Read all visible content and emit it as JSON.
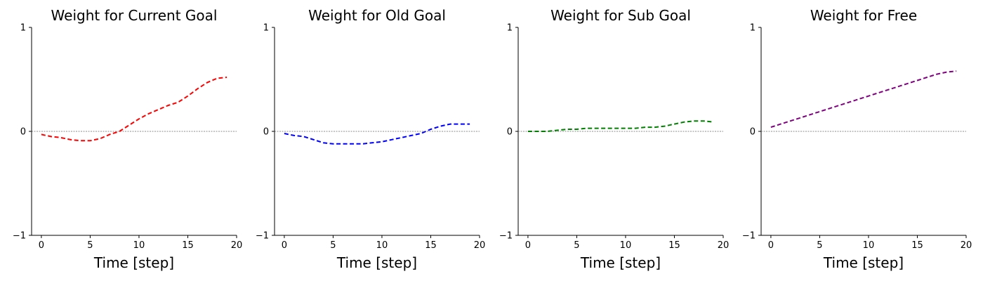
{
  "chart_data": [
    {
      "type": "line",
      "title": "Weight for Current Goal",
      "xlabel": "Time [step]",
      "ylabel": "",
      "xlim": [
        -1,
        20
      ],
      "ylim": [
        -1,
        1
      ],
      "xticks": [
        0,
        5,
        10,
        15,
        20
      ],
      "yticks": [
        -1,
        0,
        1
      ],
      "ytick_labels": [
        "−1",
        "0",
        "1"
      ],
      "grid": false,
      "zero_line": true,
      "color": "#ff0000",
      "series": [
        {
          "x": [
            0,
            1,
            2,
            3,
            4,
            5,
            6,
            7,
            8,
            9,
            10,
            11,
            12,
            13,
            14,
            15,
            16,
            17,
            18,
            19
          ],
          "values": [
            -0.03,
            -0.05,
            -0.06,
            -0.08,
            -0.09,
            -0.09,
            -0.07,
            -0.03,
            0.0,
            0.06,
            0.12,
            0.17,
            0.21,
            0.25,
            0.28,
            0.34,
            0.41,
            0.47,
            0.51,
            0.52
          ]
        }
      ]
    },
    {
      "type": "line",
      "title": "Weight for Old Goal",
      "xlabel": "Time [step]",
      "ylabel": "",
      "xlim": [
        -1,
        20
      ],
      "ylim": [
        -1,
        1
      ],
      "xticks": [
        0,
        5,
        10,
        15,
        20
      ],
      "yticks": [
        -1,
        0,
        1
      ],
      "ytick_labels": [
        "−1",
        "0",
        "1"
      ],
      "grid": false,
      "zero_line": true,
      "color": "#0000ff",
      "series": [
        {
          "x": [
            0,
            1,
            2,
            3,
            4,
            5,
            6,
            7,
            8,
            9,
            10,
            11,
            12,
            13,
            14,
            15,
            16,
            17,
            18,
            19
          ],
          "values": [
            -0.02,
            -0.04,
            -0.05,
            -0.08,
            -0.11,
            -0.12,
            -0.12,
            -0.12,
            -0.12,
            -0.11,
            -0.1,
            -0.08,
            -0.06,
            -0.04,
            -0.02,
            0.02,
            0.05,
            0.07,
            0.07,
            0.07
          ]
        }
      ]
    },
    {
      "type": "line",
      "title": "Weight for Sub Goal",
      "xlabel": "Time [step]",
      "ylabel": "",
      "xlim": [
        -1,
        20
      ],
      "ylim": [
        -1,
        1
      ],
      "xticks": [
        0,
        5,
        10,
        15,
        20
      ],
      "yticks": [
        -1,
        0,
        1
      ],
      "ytick_labels": [
        "−1",
        "0",
        "1"
      ],
      "grid": false,
      "zero_line": true,
      "color": "#008000",
      "series": [
        {
          "x": [
            0,
            1,
            2,
            3,
            4,
            5,
            6,
            7,
            8,
            9,
            10,
            11,
            12,
            13,
            14,
            15,
            16,
            17,
            18,
            19
          ],
          "values": [
            0.0,
            0.0,
            0.0,
            0.01,
            0.02,
            0.02,
            0.03,
            0.03,
            0.03,
            0.03,
            0.03,
            0.03,
            0.04,
            0.04,
            0.05,
            0.07,
            0.09,
            0.1,
            0.1,
            0.09
          ]
        }
      ]
    },
    {
      "type": "line",
      "title": "Weight for Free",
      "xlabel": "Time [step]",
      "ylabel": "",
      "xlim": [
        -1,
        20
      ],
      "ylim": [
        -1,
        1
      ],
      "xticks": [
        0,
        5,
        10,
        15,
        20
      ],
      "yticks": [
        -1,
        0,
        1
      ],
      "ytick_labels": [
        "−1",
        "0",
        "1"
      ],
      "grid": false,
      "zero_line": true,
      "color": "#800080",
      "series": [
        {
          "x": [
            0,
            1,
            2,
            3,
            4,
            5,
            6,
            7,
            8,
            9,
            10,
            11,
            12,
            13,
            14,
            15,
            16,
            17,
            18,
            19
          ],
          "values": [
            0.04,
            0.07,
            0.1,
            0.13,
            0.16,
            0.19,
            0.22,
            0.25,
            0.28,
            0.31,
            0.34,
            0.37,
            0.4,
            0.43,
            0.46,
            0.49,
            0.52,
            0.55,
            0.57,
            0.58
          ]
        }
      ]
    }
  ]
}
